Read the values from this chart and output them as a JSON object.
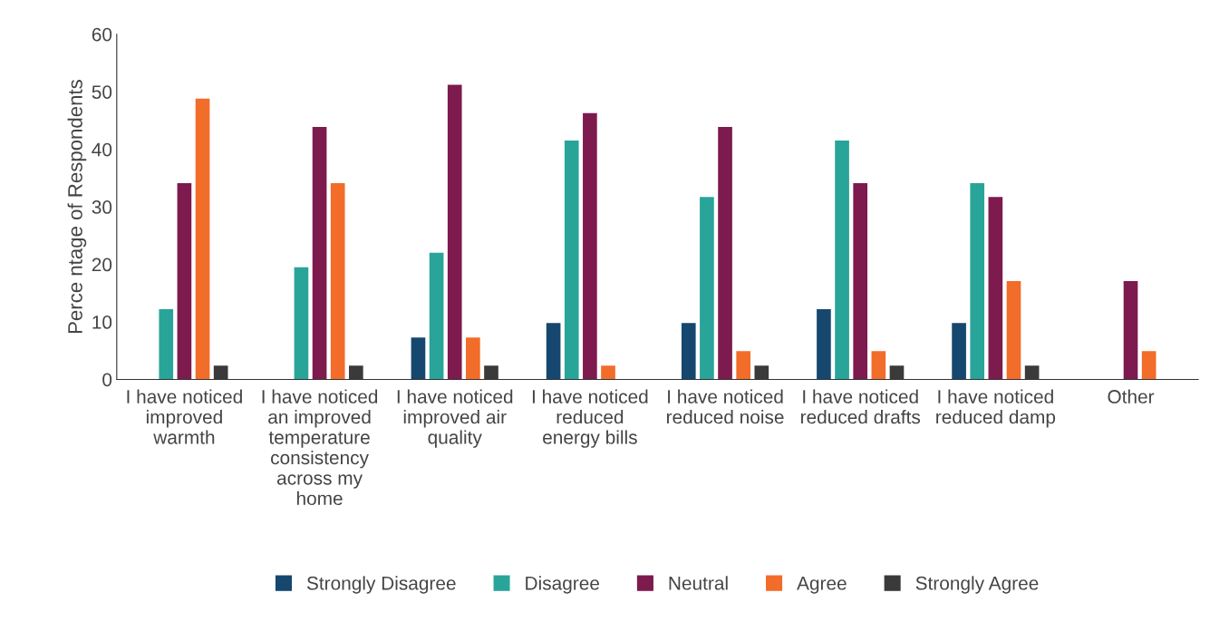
{
  "chart_data": {
    "type": "bar",
    "ylabel": "Perce ntage of Respondents",
    "categories": [
      "I have noticed\nimproved\nwarmth",
      "I have noticed\nan improved\ntemperature\nconsistency\nacross my\nhome",
      "I have noticed\nimproved air\nquality",
      "I have noticed\nreduced\nenergy bills",
      "I have noticed\nreduced noise",
      "I have noticed\nreduced drafts",
      "I have noticed\nreduced damp",
      "Other"
    ],
    "series": [
      {
        "name": "Strongly Disagree",
        "color": "#16476f",
        "values": [
          0,
          0,
          7.3,
          9.8,
          9.8,
          12.2,
          9.8,
          0
        ]
      },
      {
        "name": "Disagree",
        "color": "#29a499",
        "values": [
          12.2,
          19.5,
          22.0,
          41.5,
          31.7,
          41.5,
          34.1,
          0
        ]
      },
      {
        "name": "Neutral",
        "color": "#7d1a4e",
        "values": [
          34.1,
          43.9,
          51.2,
          46.3,
          43.9,
          34.1,
          31.7,
          17.1
        ]
      },
      {
        "name": "Agree",
        "color": "#f26c2a",
        "values": [
          48.8,
          34.1,
          7.3,
          2.4,
          4.9,
          4.9,
          17.1,
          4.9
        ]
      },
      {
        "name": "Strongly Agree",
        "color": "#3a3a3a",
        "values": [
          2.4,
          2.4,
          2.4,
          0,
          2.4,
          2.4,
          2.4,
          0
        ]
      }
    ],
    "ylim": [
      0,
      60
    ],
    "yticks": [
      0,
      10,
      20,
      30,
      40,
      50,
      60
    ],
    "grid": false,
    "legend": "bottom"
  }
}
